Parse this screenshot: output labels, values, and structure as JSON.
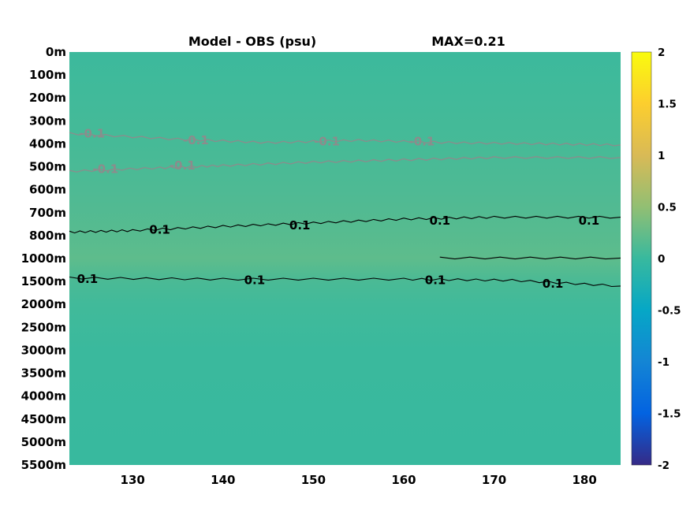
{
  "title_left": "Model - OBS (psu)",
  "title_right": "MAX=0.21",
  "chart_data": {
    "type": "heatmap",
    "title": "Model - OBS (psu)",
    "annotation": "MAX=0.21",
    "x_ticks": [
      130,
      140,
      150,
      160,
      170,
      180
    ],
    "xlim": [
      123,
      184
    ],
    "y_ticks": [
      "0m",
      "100m",
      "200m",
      "300m",
      "400m",
      "500m",
      "600m",
      "700m",
      "800m",
      "1000m",
      "1500m",
      "2000m",
      "2500m",
      "3000m",
      "3500m",
      "4000m",
      "4500m",
      "5000m",
      "5500m"
    ],
    "colorbar": {
      "ticks": [
        2,
        1.5,
        1,
        0.5,
        0,
        -0.5,
        -1,
        -1.5,
        -2
      ],
      "range": [
        -2,
        2
      ],
      "colormap": "parula"
    },
    "background_values": [
      {
        "depth": "0m",
        "value": 0.02
      },
      {
        "depth": "200m",
        "value": 0.05
      },
      {
        "depth": "400m",
        "value": 0.08
      },
      {
        "depth": "600m",
        "value": 0.12
      },
      {
        "depth": "800m",
        "value": 0.17
      },
      {
        "depth": "1000m",
        "value": 0.21
      },
      {
        "depth": "1500m",
        "value": 0.1
      },
      {
        "depth": "2000m",
        "value": 0.05
      },
      {
        "depth": "3000m",
        "value": 0.01
      },
      {
        "depth": "5500m",
        "value": 0.0
      }
    ],
    "contours": [
      {
        "level": "-0.1",
        "color": "#8c8c8c",
        "points": [
          [
            123,
            3.55
          ],
          [
            135,
            3.8
          ],
          [
            145,
            3.95
          ],
          [
            155,
            3.85
          ],
          [
            165,
            3.95
          ],
          [
            175,
            4.0
          ],
          [
            184,
            4.05
          ]
        ]
      },
      {
        "level": "-0.1",
        "color": "#8c8c8c",
        "points": [
          [
            123,
            5.2
          ],
          [
            133,
            5.05
          ],
          [
            140,
            4.95
          ],
          [
            150,
            4.8
          ],
          [
            160,
            4.7
          ],
          [
            170,
            4.6
          ],
          [
            184,
            4.6
          ]
        ]
      },
      {
        "level": "0.1",
        "color": "#000000",
        "points": [
          [
            123,
            7.85
          ],
          [
            130,
            7.78
          ],
          [
            140,
            7.6
          ],
          [
            150,
            7.45
          ],
          [
            160,
            7.28
          ],
          [
            170,
            7.2
          ],
          [
            184,
            7.2
          ]
        ]
      },
      {
        "level": "0.1",
        "color": "#000000",
        "points": [
          [
            123,
            9.85
          ],
          [
            140,
            9.9
          ],
          [
            160,
            9.9
          ],
          [
            172,
            9.95
          ],
          [
            184,
            10.2
          ]
        ]
      },
      {
        "level": "0.1",
        "color": "#000000",
        "points": [
          [
            164,
            8.98
          ],
          [
            184,
            8.98
          ]
        ]
      }
    ],
    "contour_labels": [
      {
        "text": "-0.1",
        "x": 125.5,
        "y": 3.55,
        "color": "#8c8c8c"
      },
      {
        "text": "-0.1",
        "x": 137,
        "y": 3.85,
        "color": "#8c8c8c"
      },
      {
        "text": "-0.1",
        "x": 151.5,
        "y": 3.9,
        "color": "#8c8c8c"
      },
      {
        "text": "-0.1",
        "x": 162,
        "y": 3.9,
        "color": "#8c8c8c"
      },
      {
        "text": "-0.1",
        "x": 127,
        "y": 5.1,
        "color": "#8c8c8c"
      },
      {
        "text": "-0.1",
        "x": 135.5,
        "y": 4.95,
        "color": "#8c8c8c"
      },
      {
        "text": "0.1",
        "x": 133,
        "y": 7.75,
        "color": "#000000"
      },
      {
        "text": "0.1",
        "x": 148.5,
        "y": 7.55,
        "color": "#000000"
      },
      {
        "text": "0.1",
        "x": 164,
        "y": 7.35,
        "color": "#000000"
      },
      {
        "text": "0.1",
        "x": 180.5,
        "y": 7.35,
        "color": "#000000"
      },
      {
        "text": "0.1",
        "x": 125,
        "y": 9.9,
        "color": "#000000"
      },
      {
        "text": "0.1",
        "x": 143.5,
        "y": 9.95,
        "color": "#000000"
      },
      {
        "text": "0.1",
        "x": 163.5,
        "y": 9.95,
        "color": "#000000"
      },
      {
        "text": "0.1",
        "x": 176.5,
        "y": 10.1,
        "color": "#000000"
      }
    ]
  }
}
